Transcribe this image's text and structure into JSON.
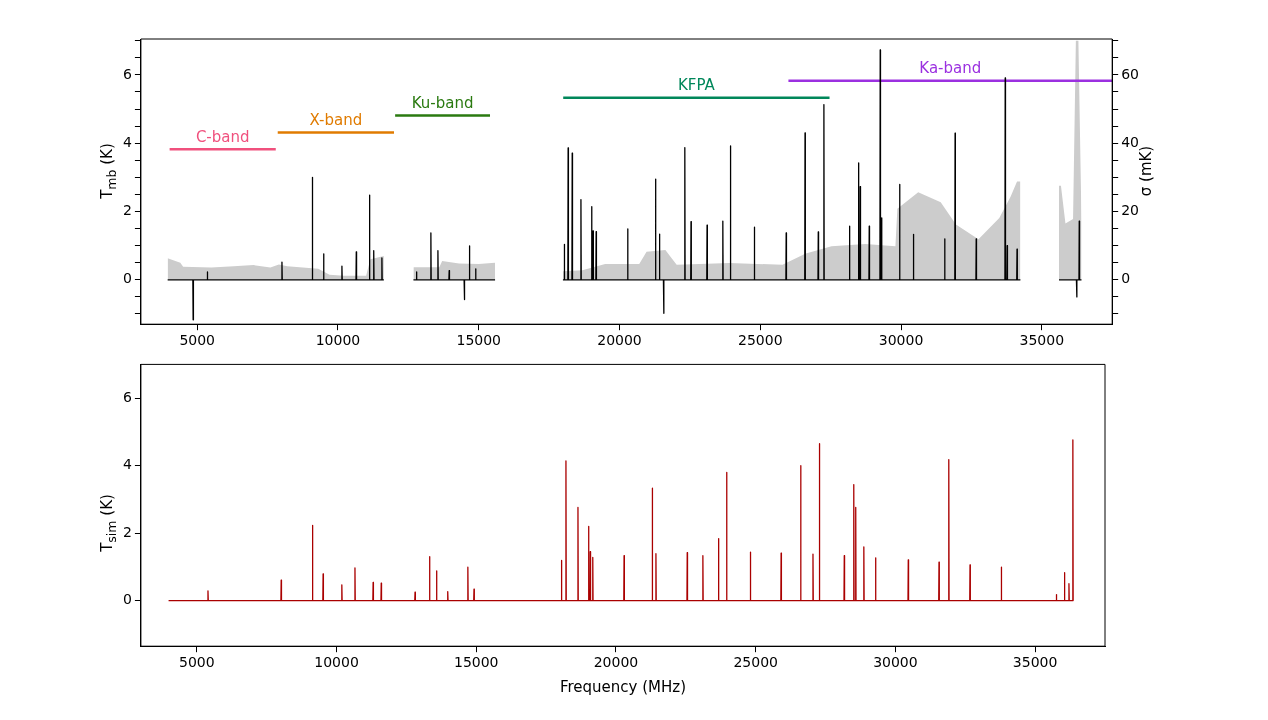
{
  "chart_data": [
    {
      "type": "line",
      "ylabel": "T$_{mb}$ (K)",
      "y2label": "σ (mK)",
      "xlim": [
        3000,
        37500
      ],
      "xticks": [
        5000,
        10000,
        15000,
        20000,
        25000,
        30000,
        35000
      ],
      "ylim": [
        -1.3,
        7.05
      ],
      "yticks": [
        {
          "value": -1,
          "label": null
        },
        {
          "value": -0.5,
          "label": null
        },
        0,
        {
          "value": 0.5,
          "label": null
        },
        {
          "value": 1,
          "label": null
        },
        {
          "value": 1.5,
          "label": null
        },
        2,
        {
          "value": 2.5,
          "label": null
        },
        {
          "value": 3,
          "label": null
        },
        {
          "value": 3.5,
          "label": null
        },
        4,
        {
          "value": 4.5,
          "label": null
        },
        {
          "value": 5,
          "label": null
        },
        {
          "value": 5.5,
          "label": null
        },
        6,
        {
          "value": 6.5,
          "label": null
        },
        {
          "value": 7,
          "label": null
        }
      ],
      "y2lim": [
        -13,
        70.5
      ],
      "y2ticks": [
        {
          "value": -10,
          "label": null
        },
        {
          "value": -5,
          "label": null
        },
        0,
        {
          "value": 5,
          "label": null
        },
        {
          "value": 10,
          "label": null
        },
        {
          "value": 15,
          "label": null
        },
        20,
        {
          "value": 25,
          "label": null
        },
        {
          "value": 30,
          "label": null
        },
        {
          "value": 35,
          "label": null
        },
        40,
        {
          "value": 45,
          "label": null
        },
        {
          "value": 50,
          "label": null
        },
        {
          "value": 55,
          "label": null
        },
        60,
        {
          "value": 65,
          "label": null
        },
        {
          "value": 70,
          "label": null
        }
      ],
      "legend": false,
      "grid": false,
      "series": [
        {
          "type": "area",
          "axis": "y2",
          "color": "#cccccc",
          "x": [
            3950,
            4400,
            4500,
            5500,
            6300,
            7000,
            7600,
            7900,
            8200,
            9300,
            9700,
            10200,
            11000,
            11150,
            11630,
            12100,
            12680,
            13600,
            13700,
            14300,
            15000,
            15580,
            16500,
            17990,
            18680,
            19490,
            20700,
            20960,
            21630,
            22030,
            23910,
            25790,
            26590,
            27530,
            28730,
            29800,
            29870,
            30610,
            31410,
            31950,
            32750,
            33490,
            33890,
            34120,
            34240,
            35000,
            35610,
            35680,
            35840,
            36110,
            36210,
            36300,
            36410
          ],
          "values": [
            6.3,
            5.0,
            3.8,
            3.6,
            4.0,
            4.3,
            3.6,
            4.5,
            4.0,
            3.2,
            1.5,
            1.2,
            1.2,
            6.0,
            7.0,
            null,
            3.7,
            3.7,
            5.5,
            4.8,
            4.6,
            5.0,
            null,
            2.5,
            2.8,
            4.6,
            4.6,
            8.2,
            8.7,
            4.4,
            4.9,
            4.4,
            7.6,
            9.8,
            10.5,
            9.8,
            20.8,
            25.6,
            22.7,
            16.2,
            11.9,
            18.1,
            24.3,
            28.8,
            28.8,
            null,
            27.5,
            27.5,
            16.5,
            17.8,
            70,
            70,
            17
          ]
        },
        {
          "type": "line",
          "color": "#000000",
          "x": [
            3950,
            4845,
            4855,
            4865,
            5350,
            5360,
            5370,
            8000,
            8010,
            8020,
            9080,
            9090,
            9100,
            9480,
            9490,
            9500,
            10130,
            10140,
            10150,
            10640,
            10650,
            10660,
            11110,
            11120,
            11130,
            11260,
            11270,
            11280,
            11550,
            11560,
            11570,
            11630,
            12100,
            12680,
            12780,
            12790,
            12800,
            13290,
            13300,
            13310,
            13540,
            13550,
            13560,
            13940,
            13950,
            13960,
            14480,
            14490,
            14500,
            14660,
            14670,
            14680,
            14880,
            14890,
            14900,
            15580,
            16500,
            17990,
            18030,
            18040,
            18050,
            18165,
            18175,
            18185,
            18310,
            18320,
            18330,
            18620,
            18630,
            18640,
            19000,
            19010,
            19020,
            19050,
            19060,
            19070,
            19160,
            19170,
            19180,
            20280,
            20290,
            20300,
            21270,
            21280,
            21290,
            21410,
            21420,
            21430,
            21560,
            21570,
            21580,
            22310,
            22320,
            22330,
            22530,
            22540,
            22550,
            23100,
            23110,
            23120,
            23660,
            23670,
            23680,
            23930,
            23940,
            23950,
            24780,
            24790,
            24800,
            25910,
            25920,
            25930,
            26580,
            26590,
            26600,
            27050,
            27060,
            27070,
            27250,
            27260,
            27270,
            28160,
            28170,
            28180,
            28480,
            28490,
            28500,
            28540,
            28550,
            28560,
            28860,
            28870,
            28880,
            29250,
            29260,
            29270,
            29300,
            29310,
            29320,
            29940,
            29950,
            29960,
            30430,
            30440,
            30450,
            31540,
            31550,
            31560,
            31910,
            31920,
            31930,
            32660,
            32670,
            32680,
            33690,
            33700,
            33710,
            33760,
            33770,
            33780,
            34110,
            34120,
            34130,
            34240,
            35000,
            35610,
            36230,
            36240,
            36250,
            36320,
            36330,
            36340,
            36410
          ],
          "values": [
            0,
            0,
            -1.17,
            0,
            0,
            0.23,
            0,
            0,
            0.52,
            0,
            0,
            3.0,
            0,
            0,
            0.76,
            0,
            0,
            0.4,
            0,
            0,
            0.82,
            0,
            0,
            2.48,
            0,
            0,
            0.85,
            0,
            0,
            0.64,
            0,
            0,
            null,
            0,
            0,
            0.23,
            0,
            0,
            1.37,
            0,
            0,
            0.85,
            0,
            0,
            0.27,
            0,
            0,
            -0.58,
            0,
            0,
            0.99,
            0,
            0,
            0.32,
            0,
            0,
            null,
            0,
            0,
            1.04,
            0,
            0,
            3.86,
            0,
            0,
            3.71,
            0,
            0,
            2.35,
            0,
            0,
            2.14,
            0,
            0,
            1.43,
            0,
            0,
            1.41,
            0,
            0,
            1.49,
            0,
            0,
            2.95,
            0,
            0,
            1.34,
            0,
            0,
            -0.98,
            0,
            0,
            3.87,
            0,
            0,
            1.7,
            0,
            0,
            1.6,
            0,
            0,
            1.72,
            0,
            0,
            3.92,
            0,
            0,
            1.54,
            0,
            0,
            1.37,
            0,
            0,
            4.3,
            0,
            0,
            1.4,
            0,
            0,
            5.13,
            0,
            0,
            1.57,
            0,
            0,
            3.42,
            0,
            0,
            2.73,
            0,
            0,
            1.57,
            0,
            0,
            6.73,
            0,
            0,
            1.81,
            0,
            0,
            2.79,
            0,
            0,
            1.33,
            0,
            0,
            1.2,
            0,
            0,
            4.29,
            0,
            0,
            1.2,
            0,
            0,
            5.91,
            0,
            0,
            1.0,
            0,
            0,
            0.9,
            0,
            0,
            null,
            0,
            0,
            -0.5,
            0,
            0,
            1.72,
            0,
            0
          ]
        },
        {
          "type": "line",
          "name": "C-band",
          "color": "#f0507d",
          "x": [
            4020,
            7790
          ],
          "values": [
            3.82,
            3.82
          ]
        },
        {
          "type": "line",
          "name": "X-band",
          "color": "#e07b00",
          "x": [
            7860,
            11990
          ],
          "values": [
            4.31,
            4.31
          ]
        },
        {
          "type": "line",
          "name": "Ku-band",
          "color": "#2a7a10",
          "x": [
            12030,
            15400
          ],
          "values": [
            4.81,
            4.81
          ]
        },
        {
          "type": "line",
          "name": "KFPA",
          "color": "#00875a",
          "x": [
            18000,
            27460
          ],
          "values": [
            5.33,
            5.33
          ]
        },
        {
          "type": "line",
          "name": "Ka-band",
          "color": "#9b30e0",
          "x": [
            26000,
            37500
          ],
          "values": [
            5.83,
            5.83
          ]
        }
      ]
    },
    {
      "type": "line",
      "ylabel": "T$_{sim}$ (K)",
      "xlabel": "Frequency (MHz)",
      "xlim": [
        3000,
        37500
      ],
      "xticks": [
        5000,
        10000,
        15000,
        20000,
        25000,
        30000,
        35000
      ],
      "ylim": [
        -1.35,
        7.0
      ],
      "yticks": [
        0,
        2,
        4,
        6
      ],
      "legend": false,
      "grid": false,
      "series": [
        {
          "color": "#aa0000",
          "x": [
            3990,
            5390,
            5400,
            5410,
            8010,
            8020,
            8030,
            9130,
            9140,
            9150,
            9510,
            9520,
            9530,
            10180,
            10190,
            10200,
            10650,
            10660,
            10670,
            11300,
            11310,
            11320,
            11590,
            11600,
            11610,
            12800,
            12810,
            12820,
            13320,
            13330,
            13340,
            13570,
            13580,
            13590,
            13970,
            13980,
            13990,
            14690,
            14700,
            14710,
            14910,
            14920,
            14930,
            18040,
            18050,
            18060,
            18200,
            18210,
            18220,
            18630,
            18640,
            18650,
            19010,
            19020,
            19030,
            19070,
            19080,
            19090,
            19160,
            19170,
            19180,
            20280,
            20290,
            20300,
            21290,
            21300,
            21310,
            21420,
            21430,
            21440,
            22540,
            22550,
            22560,
            23100,
            23110,
            23120,
            23660,
            23670,
            23680,
            23950,
            23960,
            23970,
            24800,
            24810,
            24820,
            25900,
            25910,
            25920,
            26600,
            26610,
            26620,
            27040,
            27050,
            27060,
            27270,
            27280,
            27290,
            28160,
            28170,
            28180,
            28500,
            28510,
            28520,
            28570,
            28580,
            28590,
            28860,
            28870,
            28880,
            29280,
            29290,
            29300,
            30450,
            30460,
            30470,
            31550,
            31560,
            31570,
            31900,
            31910,
            31920,
            32660,
            32670,
            32680,
            33780,
            33790,
            33800,
            35750,
            35760,
            35770,
            36040,
            36050,
            36060,
            36200,
            36210,
            36220,
            36340,
            36350,
            36360,
            36390
          ],
          "values": [
            0,
            0,
            0.29,
            0,
            0,
            0.61,
            0,
            0,
            2.23,
            0,
            0,
            0.79,
            0,
            0,
            0.47,
            0,
            0,
            0.97,
            0,
            0,
            0.54,
            0,
            0,
            0.52,
            0,
            0,
            0.25,
            0,
            0,
            1.3,
            0,
            0,
            0.88,
            0,
            0,
            0.27,
            0,
            0,
            0.99,
            0,
            0,
            0.34,
            0,
            0,
            1.19,
            0,
            0,
            4.14,
            0,
            0,
            2.76,
            0,
            0,
            2.2,
            0,
            0,
            1.45,
            0,
            0,
            1.28,
            0,
            0,
            1.33,
            0,
            0,
            3.33,
            0,
            0,
            1.39,
            0,
            0,
            1.42,
            0,
            0,
            1.33,
            0,
            0,
            1.84,
            0,
            0,
            3.8,
            0,
            0,
            1.44,
            0,
            0,
            1.41,
            0,
            0,
            4.0,
            0,
            0,
            1.38,
            0,
            0,
            4.65,
            0,
            0,
            1.33,
            0,
            0,
            3.44,
            0,
            0,
            2.76,
            0,
            0,
            1.59,
            0,
            0,
            1.27,
            0,
            0,
            1.21,
            0,
            0,
            1.14,
            0,
            0,
            4.18,
            0,
            0,
            1.06,
            0,
            0,
            0.99,
            0,
            0,
            0.18,
            0,
            0,
            0.83,
            0,
            0,
            0.5,
            0,
            0,
            4.76,
            0,
            0
          ]
        }
      ]
    }
  ]
}
